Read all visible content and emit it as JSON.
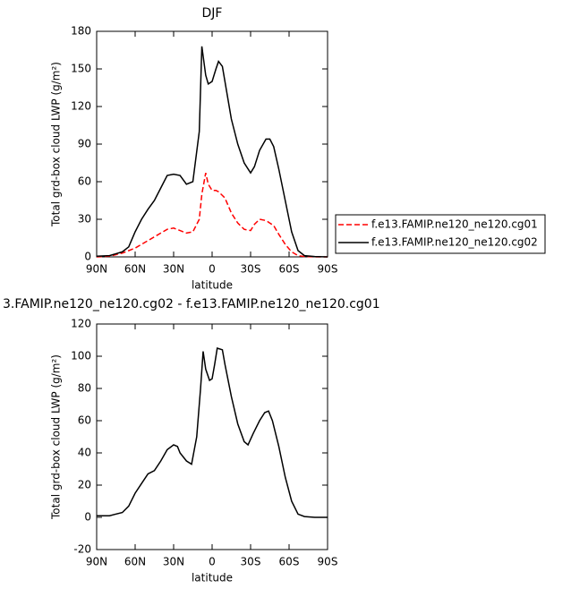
{
  "chart_data": [
    {
      "type": "line",
      "title": "DJF",
      "xlabel": "latitude",
      "ylabel": "Total grd-box cloud LWP (g/m²)",
      "xlim": [
        90,
        -90
      ],
      "xticks": [
        {
          "value": 90,
          "label": "90N"
        },
        {
          "value": 60,
          "label": "60N"
        },
        {
          "value": 30,
          "label": "30N"
        },
        0,
        {
          "value": -30,
          "label": "30S"
        },
        {
          "value": -60,
          "label": "60S"
        },
        {
          "value": -90,
          "label": "90S"
        }
      ],
      "ylim": [
        0,
        180
      ],
      "yticks": [
        0,
        30,
        60,
        90,
        120,
        150,
        180
      ],
      "legend": "right",
      "x": [
        90,
        80,
        70,
        65,
        60,
        55,
        50,
        45,
        40,
        35,
        30,
        25,
        20,
        15,
        10,
        8,
        5,
        3,
        0,
        -3,
        -5,
        -8,
        -10,
        -15,
        -20,
        -25,
        -30,
        -33,
        -37,
        -42,
        -45,
        -48,
        -52,
        -57,
        -62,
        -67,
        -72,
        -80,
        -90
      ],
      "series": [
        {
          "name": "f.e13.FAMIP.ne120_ne120.cg01",
          "color": "#ff0000",
          "dashed": true,
          "values": [
            0,
            0.5,
            3,
            5,
            7,
            10,
            13,
            16,
            19,
            22,
            23,
            21,
            19,
            20,
            30,
            50,
            67,
            58,
            53,
            53,
            52,
            49,
            47,
            35,
            27,
            22,
            21,
            26,
            30,
            29,
            27,
            25,
            18,
            10,
            4,
            1,
            0.3,
            0,
            0
          ]
        },
        {
          "name": "f.e13.FAMIP.ne120_ne120.cg02",
          "color": "#000000",
          "dashed": false,
          "values": [
            0.5,
            1,
            4,
            8,
            20,
            30,
            38,
            45,
            55,
            65,
            66,
            65,
            58,
            60,
            100,
            168,
            145,
            138,
            140,
            150,
            156,
            152,
            140,
            110,
            90,
            75,
            67,
            72,
            85,
            94,
            94,
            88,
            70,
            45,
            20,
            5,
            1,
            0.3,
            0
          ]
        }
      ]
    },
    {
      "type": "line",
      "title": "3.FAMIP.ne120_ne120.cg02 - f.e13.FAMIP.ne120_ne120.cg01",
      "xlabel": "latitude",
      "ylabel": "Total grd-box cloud LWP (g/m²)",
      "xlim": [
        90,
        -90
      ],
      "xticks": [
        {
          "value": 90,
          "label": "90N"
        },
        {
          "value": 60,
          "label": "60N"
        },
        {
          "value": 30,
          "label": "30N"
        },
        0,
        {
          "value": -30,
          "label": "30S"
        },
        {
          "value": -60,
          "label": "60S"
        },
        {
          "value": -90,
          "label": "90S"
        }
      ],
      "ylim": [
        -20,
        120
      ],
      "yticks": [
        -20,
        0,
        20,
        40,
        60,
        80,
        100,
        120
      ],
      "x": [
        90,
        80,
        70,
        65,
        60,
        55,
        50,
        45,
        40,
        35,
        30,
        27,
        25,
        20,
        16,
        12,
        9,
        7,
        5,
        2,
        0,
        -2,
        -4,
        -8,
        -10,
        -15,
        -20,
        -25,
        -28,
        -32,
        -37,
        -41,
        -44,
        -47,
        -52,
        -57,
        -62,
        -67,
        -72,
        -80,
        -90
      ],
      "series": [
        {
          "color": "#000000",
          "dashed": false,
          "values": [
            1,
            1,
            3,
            7,
            15,
            21,
            27,
            29,
            35,
            42,
            45,
            44,
            40,
            35,
            33,
            50,
            80,
            103,
            92,
            85,
            86,
            95,
            105,
            104,
            95,
            75,
            58,
            47,
            45,
            52,
            60,
            65,
            66,
            60,
            44,
            25,
            10,
            2,
            0.5,
            0,
            0
          ]
        }
      ]
    }
  ]
}
